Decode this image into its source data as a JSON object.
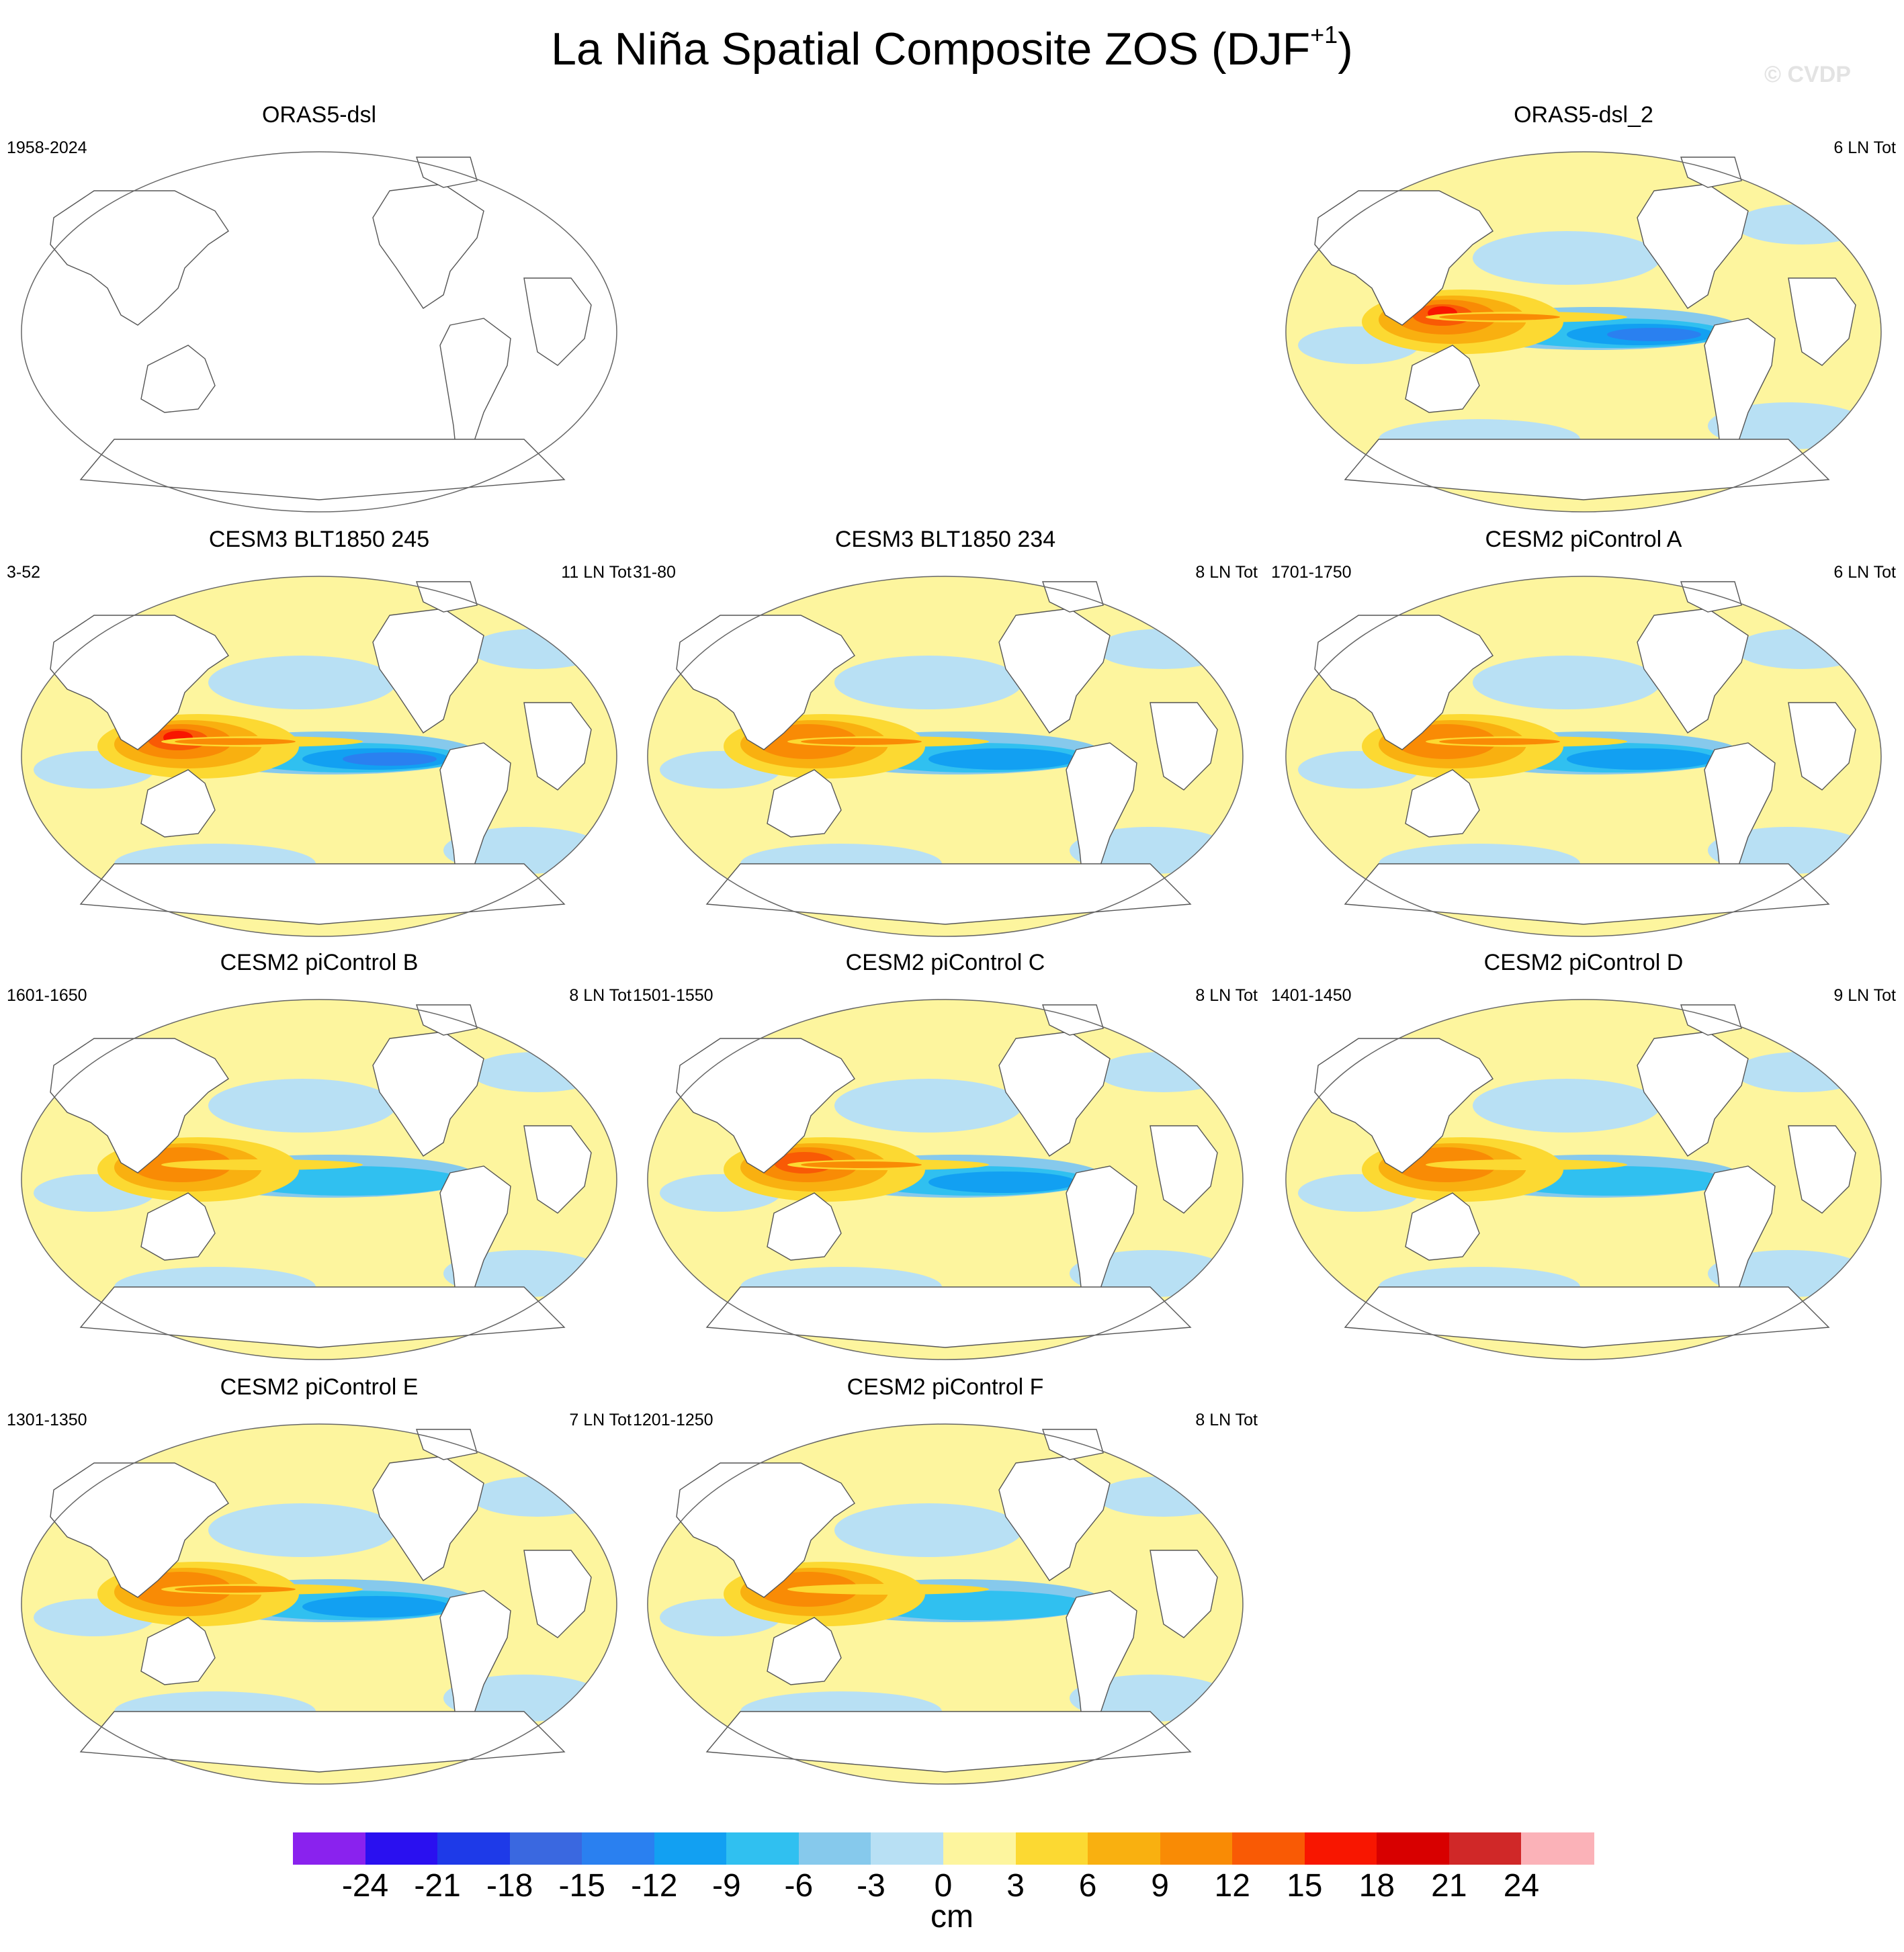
{
  "title": "La Niña Spatial Composite ZOS (DJF",
  "title_sup": "+1",
  "title_close": ")",
  "watermark": "© CVDP",
  "panels": [
    {
      "title": "ORAS5-dsl",
      "period": "1958-2024",
      "count": "",
      "empty": true,
      "intensity": 0
    },
    {
      "title": "ORAS5-dsl_2",
      "period": "",
      "count": "6 LN Tot",
      "empty": false,
      "intensity": 0.95
    },
    {
      "title": "CESM3 BLT1850 245",
      "period": "3-52",
      "count": "11 LN Tot",
      "empty": false,
      "intensity": 1.0
    },
    {
      "title": "CESM3 BLT1850 234",
      "period": "31-80",
      "count": "8 LN Tot",
      "empty": false,
      "intensity": 0.8
    },
    {
      "title": "CESM2 piControl A",
      "period": "1701-1750",
      "count": "6 LN Tot",
      "empty": false,
      "intensity": 0.75
    },
    {
      "title": "CESM2 piControl B",
      "period": "1601-1650",
      "count": "8 LN Tot",
      "empty": false,
      "intensity": 0.7
    },
    {
      "title": "CESM2 piControl C",
      "period": "1501-1550",
      "count": "8 LN Tot",
      "empty": false,
      "intensity": 0.85
    },
    {
      "title": "CESM2 piControl D",
      "period": "1401-1450",
      "count": "9 LN Tot",
      "empty": false,
      "intensity": 0.65
    },
    {
      "title": "CESM2 piControl E",
      "period": "1301-1350",
      "count": "7 LN Tot",
      "empty": false,
      "intensity": 0.8
    },
    {
      "title": "CESM2 piControl F",
      "period": "1201-1250",
      "count": "8 LN Tot",
      "empty": false,
      "intensity": 0.7
    }
  ],
  "colorbar": {
    "unit": "cm",
    "tick_labels": [
      "-24",
      "-21",
      "-18",
      "-15",
      "-12",
      "-9",
      "-6",
      "-3",
      "0",
      "3",
      "6",
      "9",
      "12",
      "15",
      "18",
      "21",
      "24"
    ],
    "colors": [
      "#8a22ee",
      "#2a10f0",
      "#1e3ae8",
      "#3a68e0",
      "#2a80f0",
      "#12a0f2",
      "#30c0f0",
      "#86c9ec",
      "#b8e0f4",
      "#fdf59e",
      "#fcd932",
      "#f9b010",
      "#f98b05",
      "#f95a05",
      "#f81600",
      "#d80000",
      "#d02828",
      "#fbb2b8"
    ]
  }
}
